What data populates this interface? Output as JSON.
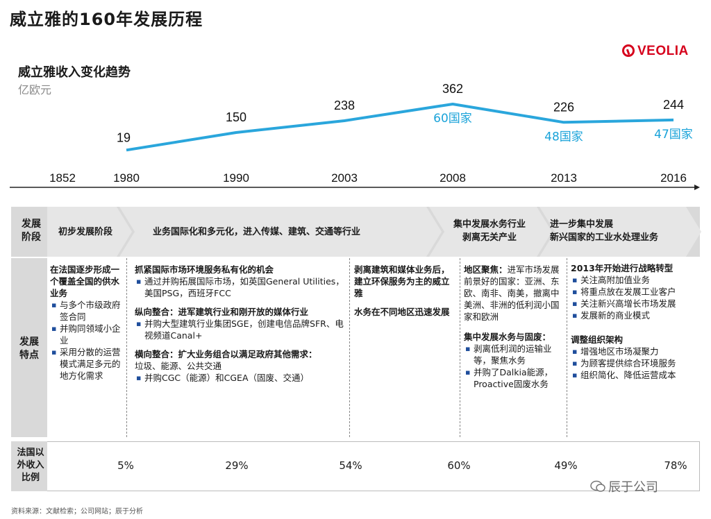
{
  "title": "威立雅的160年发展历程",
  "logo_text": "VEOLIA",
  "colors": {
    "line": "#2aa6dc",
    "accent_text": "#1aa3d9",
    "brand_red": "#d6001c",
    "band_grey": "#d9d9d9",
    "arrow_grey": "#e6e6e6"
  },
  "chart_data": {
    "type": "line",
    "title": "威立雅收入变化趋势",
    "unit": "亿欧元",
    "x": [
      "1980",
      "1990",
      "2003",
      "2008",
      "2013",
      "2016"
    ],
    "values": [
      19,
      150,
      238,
      362,
      226,
      244
    ],
    "value_labels": [
      "19",
      "150",
      "238",
      "362",
      "226",
      "244"
    ],
    "country_labels": [
      {
        "year": "2008",
        "text": "60国家"
      },
      {
        "year": "2013",
        "text": "48国家"
      },
      {
        "year": "2016",
        "text": "47国家"
      }
    ],
    "timeline_ticks": [
      "1852",
      "1980",
      "1990",
      "2003",
      "2008",
      "2013",
      "2016"
    ]
  },
  "stages": {
    "row_label": "发展\n阶段",
    "items": [
      "初步发展阶段",
      "业务国际化和多元化，进入传媒、建筑、交通等行业",
      "集中发展水务行业\n剥离无关产业",
      "进一步集中发展\n新兴国家的工业水处理业务"
    ]
  },
  "features": {
    "row_label": "发展\n特点",
    "col1": {
      "heading": "在法国逐步形成一个覆盖全国的供水业务",
      "bullets": [
        "与多个市级政府签合同",
        "并购同领域小企业",
        "采用分散的运营模式满足多元的地方化需求"
      ]
    },
    "col2": {
      "blocks": [
        {
          "heading": "抓紧国际市场环境服务私有化的机会",
          "bullets": [
            "通过并购拓展国际市场，如英国General Utilities，美国PSG，西班牙FCC"
          ]
        },
        {
          "heading": "纵向整合：进军建筑行业和刚开放的媒体行业",
          "bullets": [
            "并购大型建筑行业集团SGE，创建电信品牌SFR、电视频道Canal+"
          ]
        },
        {
          "heading": "横向整合：扩大业务组合以满足政府其他需求：",
          "sub": "垃圾、能源、公共交通",
          "bullets": [
            "并购CGC（能源）和CGEA（固废、交通）"
          ]
        }
      ]
    },
    "col3": {
      "paragraphs": [
        "剥离建筑和媒体业务后，建立环保服务为主的威立雅",
        "水务在不同地区迅速发展"
      ]
    },
    "col4": {
      "para_bold": "地区聚焦：",
      "para_rest": "进军市场发展前景好的国家：亚洲、东欧、南非、南美，撤离中美洲、非洲的低利润小国家和欧洲",
      "heading2": "集中发展水务与固废：",
      "bullets": [
        "剥离低利润的运输业等，聚焦水务",
        "并购了Dalkia能源，Proactive固废水务"
      ]
    },
    "col5": {
      "heading1": "2013年开始进行战略转型",
      "bullets1": [
        "关注高附加值业务",
        "将重点放在发展工业客户",
        "关注新兴高增长市场发展",
        "发展新的商业模式"
      ],
      "heading2": "调整组织架构",
      "bullets2": [
        "增强地区市场凝聚力",
        "为顾客提供综合环境服务",
        "组织简化、降低运营成本"
      ]
    }
  },
  "foreign_revenue": {
    "row_label": "法国以\n外收入\n比例",
    "values": [
      "5%",
      "29%",
      "54%",
      "60%",
      "49%",
      "78%"
    ]
  },
  "source": "资料来源：文献检索；公司网站；辰于分析",
  "watermark": "辰于公司"
}
